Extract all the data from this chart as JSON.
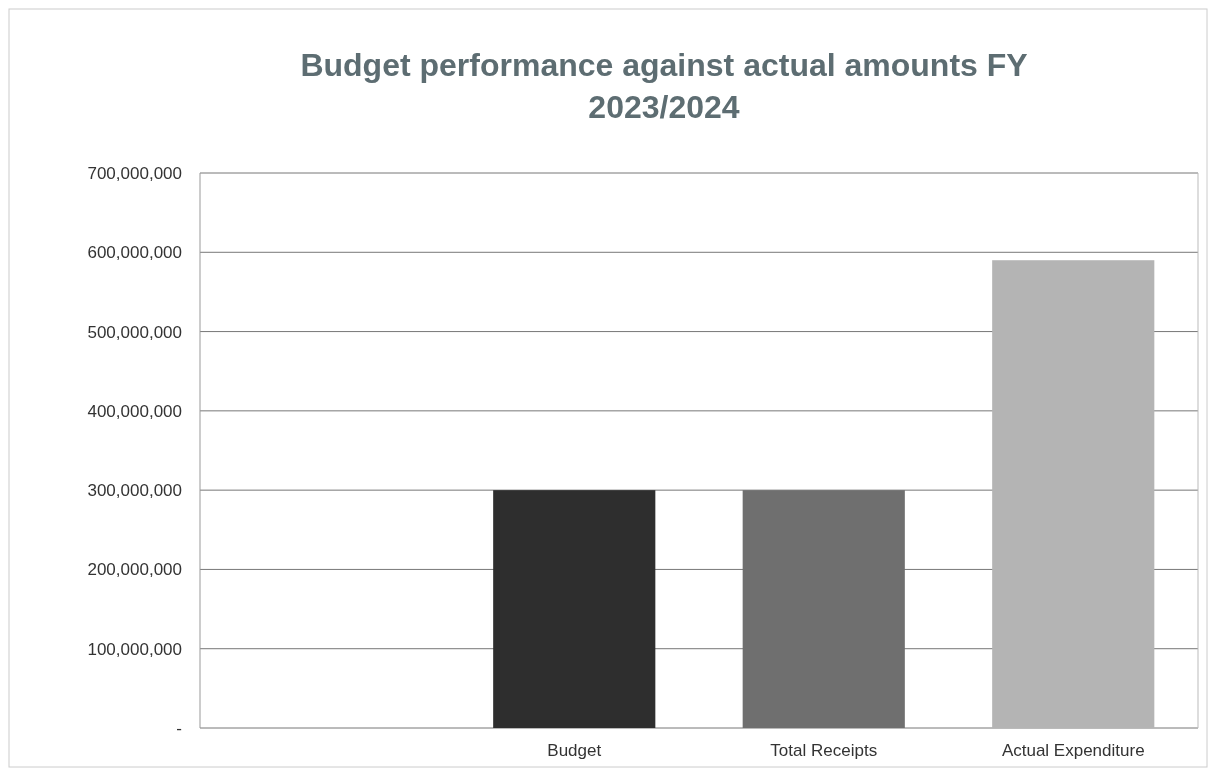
{
  "chart_data": {
    "type": "bar",
    "title": "Budget performance against actual amounts FY 2023/2024",
    "categories": [
      null,
      "Budget",
      "Total Receipts",
      "Actual Expenditure"
    ],
    "values": [
      null,
      300000000,
      300000000,
      590000000
    ],
    "colors": [
      null,
      "#2e2e2e",
      "#6f6f6f",
      "#b4b4b4"
    ],
    "ylim": [
      0,
      700000000
    ],
    "yticks": [
      {
        "value": 0,
        "label": "-"
      },
      {
        "value": 100000000,
        "label": "100,000,000"
      },
      {
        "value": 200000000,
        "label": "200,000,000"
      },
      {
        "value": 300000000,
        "label": "300,000,000"
      },
      {
        "value": 400000000,
        "label": "400,000,000"
      },
      {
        "value": 500000000,
        "label": "500,000,000"
      },
      {
        "value": 600000000,
        "label": "600,000,000"
      },
      {
        "value": 700000000,
        "label": "700,000,000"
      }
    ],
    "grid": "y"
  }
}
